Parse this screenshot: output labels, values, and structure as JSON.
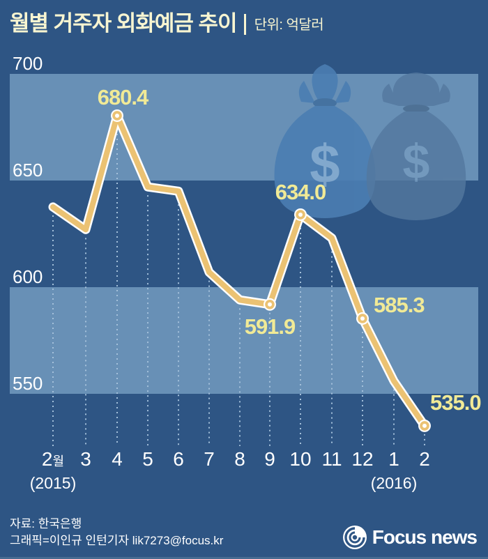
{
  "title": "월별 거주자 외화예금 추이",
  "unit_label": "단위: 억달러",
  "colors": {
    "background": "#2e5584",
    "band": "#6890b6",
    "line_gold": "#ebc273",
    "line_outline": "#ffffff",
    "label_yellow": "#f1ea96",
    "title_cream": "#f8f5d1",
    "axis_white": "#ffffff",
    "dotted_line": "#a4c0da",
    "bag_left": "#4b7eb2",
    "bag_right": "#54789f",
    "bag_dollar_left": "#8fb3d6",
    "bag_dollar_right": "#7fa5c8",
    "bottom_strip": "#476b91"
  },
  "chart_data": {
    "type": "line",
    "title": "월별 거주자 외화예금 추이",
    "unit": "억달러",
    "categories": [
      "2월",
      "3",
      "4",
      "5",
      "6",
      "7",
      "8",
      "9",
      "10",
      "11",
      "12",
      "1",
      "2"
    ],
    "values": [
      637.6,
      627.0,
      680.4,
      647.0,
      645.0,
      607.0,
      594.0,
      591.9,
      634.0,
      623.0,
      585.3,
      556.0,
      535.0
    ],
    "labeled_points": [
      {
        "index": 2,
        "label": "680.4"
      },
      {
        "index": 7,
        "label": "591.9"
      },
      {
        "index": 8,
        "label": "634.0"
      },
      {
        "index": 10,
        "label": "585.3"
      },
      {
        "index": 12,
        "label": "535.0"
      }
    ],
    "yticks": [
      "700",
      "650",
      "600",
      "550"
    ],
    "ytick_values": [
      700,
      650,
      600,
      550
    ],
    "ylim": [
      520,
      710
    ],
    "bands": [
      [
        650,
        700
      ],
      [
        550,
        600
      ]
    ],
    "year_markers": [
      {
        "index": 0,
        "text": "(2015)"
      },
      {
        "index": 11,
        "text": "(2016)"
      }
    ],
    "grid": "dotted-vertical",
    "legend": "none"
  },
  "decoration": {
    "dollar_symbol": "$"
  },
  "footer": {
    "source": "자료: 한국은행",
    "credit": "그래픽=이인규 인턴기자 lik7273@focus.kr",
    "logo_text": "Focus news"
  }
}
